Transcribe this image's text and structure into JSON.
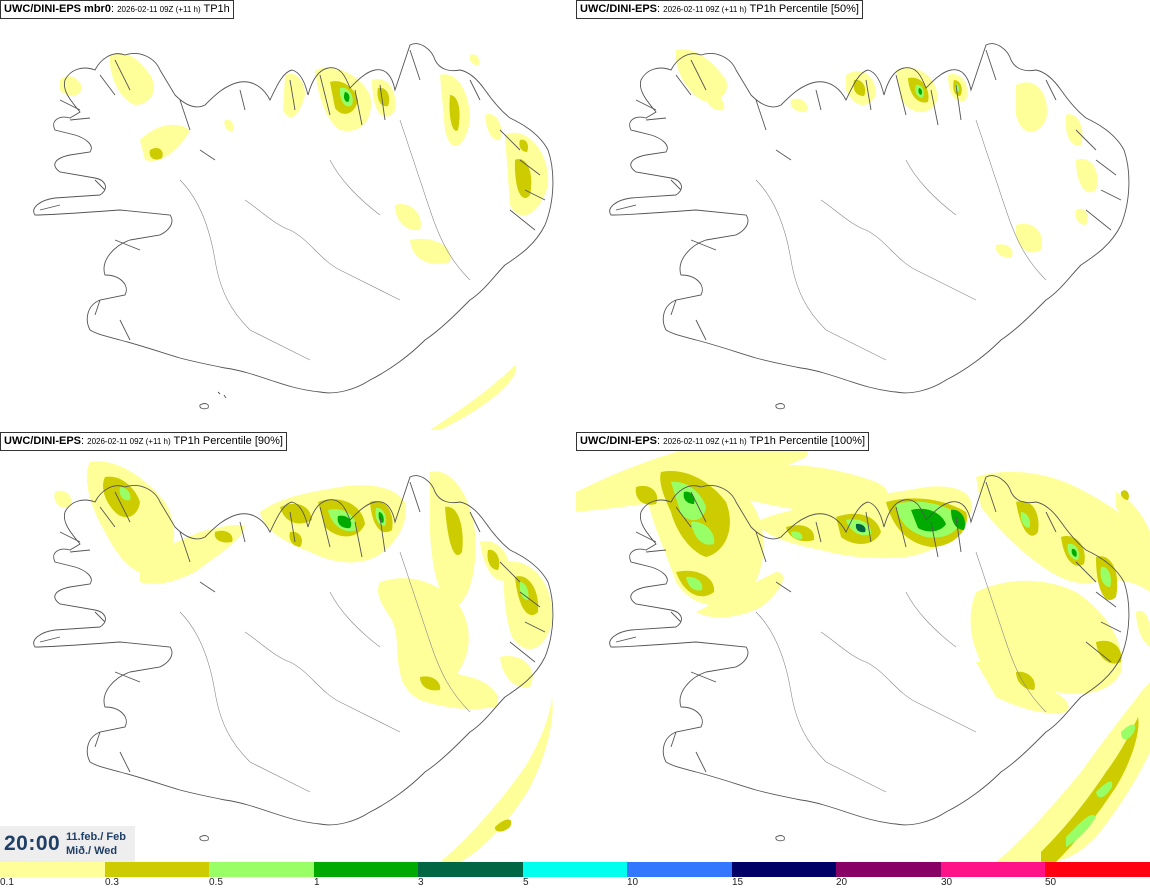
{
  "panels": [
    {
      "model": "UWC/DINI-EPS mbr0",
      "run": "2026-02-11 09Z (+11 h)",
      "field": "TP1h"
    },
    {
      "model": "UWC/DINI-EPS",
      "run": "2026-02-11 09Z (+11 h)",
      "field": "TP1h Percentile [50%]"
    },
    {
      "model": "UWC/DINI-EPS",
      "run": "2026-02-11 09Z (+11 h)",
      "field": "TP1h Percentile [90%]"
    },
    {
      "model": "UWC/DINI-EPS",
      "run": "2026-02-11 09Z (+11 h)",
      "field": "TP1h Percentile [100%]"
    }
  ],
  "timestamp": {
    "time": "20:00",
    "date": "11.feb./ Feb",
    "day": "Mið./ Wed"
  },
  "colors": {
    "coastline": "#555555",
    "water_bg": "#ffffff"
  },
  "colorbar": {
    "labels": [
      "0.1",
      "0.3",
      "0.5",
      "1",
      "3",
      "5",
      "10",
      "15",
      "20",
      "30",
      "50"
    ],
    "colors": [
      "#ffff99",
      "#cccc00",
      "#99ff66",
      "#00aa00",
      "#006644",
      "#00ffee",
      "#3377ff",
      "#000066",
      "#880066",
      "#ff1188",
      "#ff0011"
    ]
  }
}
